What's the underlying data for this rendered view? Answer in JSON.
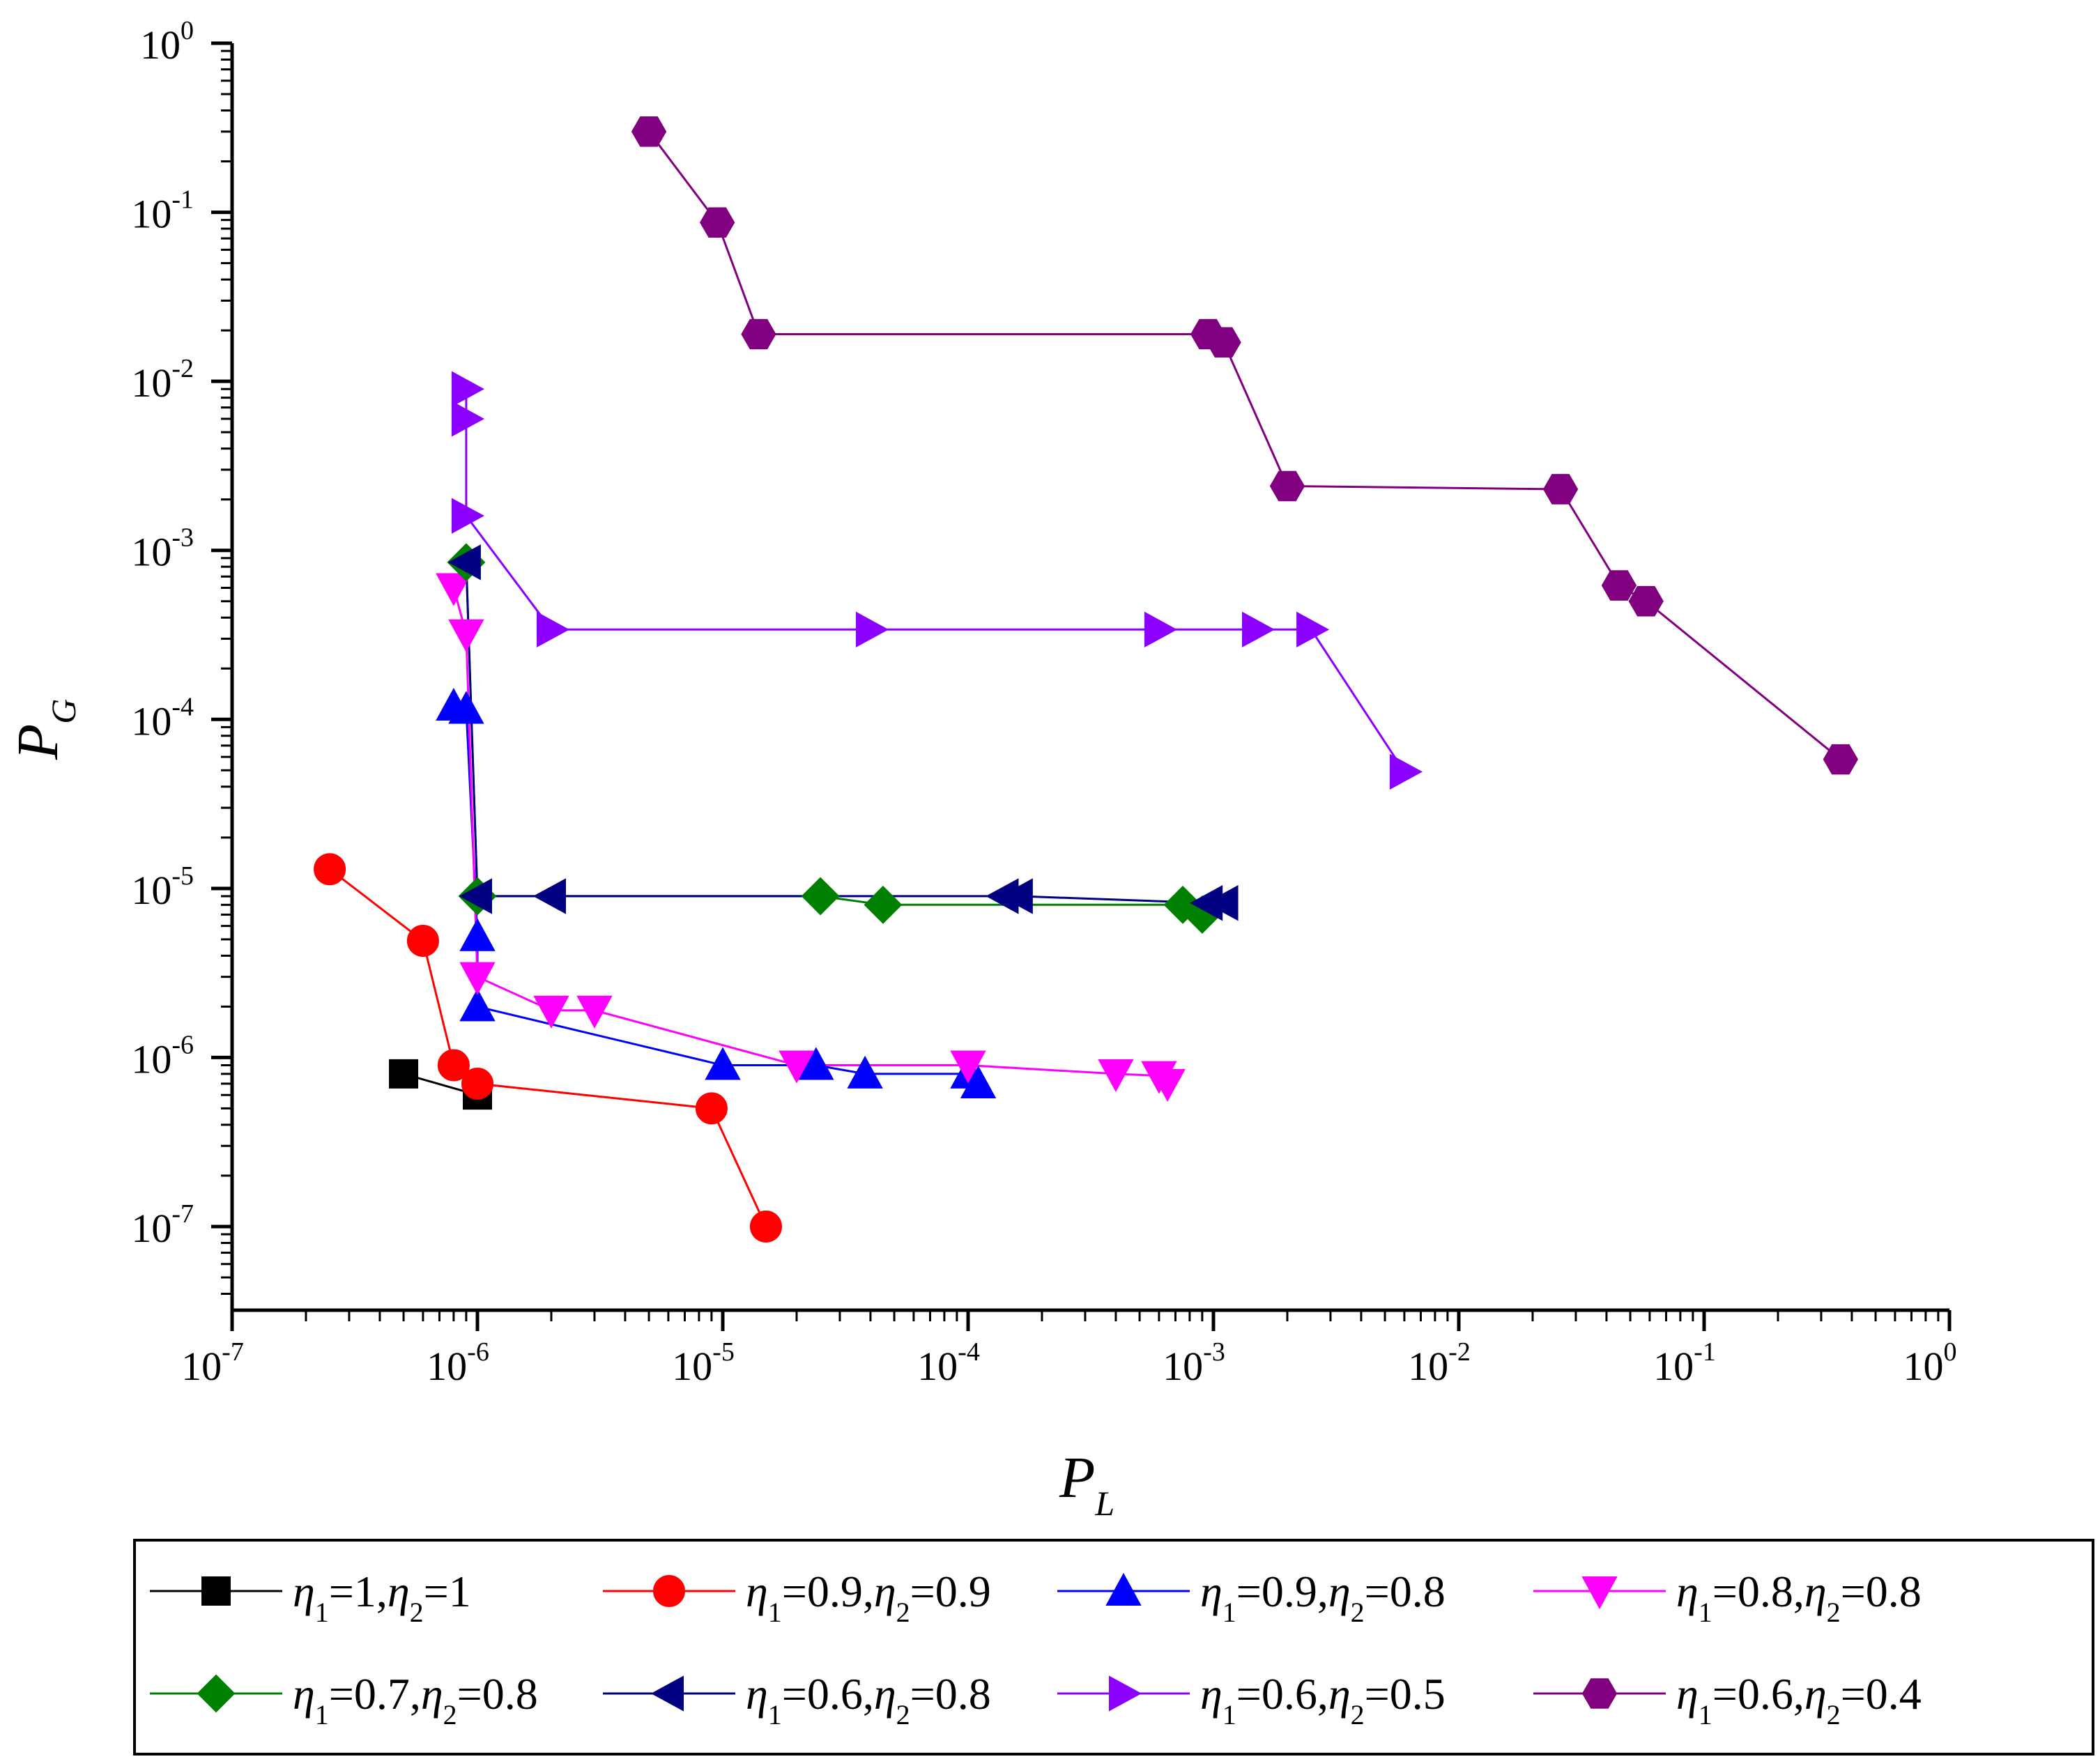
{
  "chart_data": {
    "type": "scatter",
    "title": "",
    "xlabel": {
      "main": "P",
      "sub": "L"
    },
    "ylabel": {
      "main": "P",
      "sub": "G"
    },
    "xscale": "log",
    "yscale": "log",
    "xlim": [
      1e-07,
      1
    ],
    "ylim": [
      3.2e-08,
      1
    ],
    "grid": false,
    "legend_position": "bottom",
    "x_ticks": [
      {
        "value": 1e-07,
        "base": "10",
        "exp": "-7"
      },
      {
        "value": 1e-06,
        "base": "10",
        "exp": "-6"
      },
      {
        "value": 1e-05,
        "base": "10",
        "exp": "-5"
      },
      {
        "value": 0.0001,
        "base": "10",
        "exp": "-4"
      },
      {
        "value": 0.001,
        "base": "10",
        "exp": "-3"
      },
      {
        "value": 0.01,
        "base": "10",
        "exp": "-2"
      },
      {
        "value": 0.1,
        "base": "10",
        "exp": "-1"
      },
      {
        "value": 1,
        "base": "10",
        "exp": "0"
      }
    ],
    "y_ticks": [
      {
        "value": 1e-07,
        "base": "10",
        "exp": "-7"
      },
      {
        "value": 1e-06,
        "base": "10",
        "exp": "-6"
      },
      {
        "value": 1e-05,
        "base": "10",
        "exp": "-5"
      },
      {
        "value": 0.0001,
        "base": "10",
        "exp": "-4"
      },
      {
        "value": 0.001,
        "base": "10",
        "exp": "-3"
      },
      {
        "value": 0.01,
        "base": "10",
        "exp": "-2"
      },
      {
        "value": 0.1,
        "base": "10",
        "exp": "-1"
      },
      {
        "value": 1,
        "base": "10",
        "exp": "0"
      }
    ],
    "series": [
      {
        "name": "η1=1,η2=1",
        "label": {
          "eta1": "1",
          "eta2": "1"
        },
        "color": "#000000",
        "marker": "square",
        "points": [
          [
            5e-07,
            8e-07
          ],
          [
            1e-06,
            6e-07
          ]
        ]
      },
      {
        "name": "η1=0.9,η2=0.9",
        "label": {
          "eta1": "0.9",
          "eta2": "0.9"
        },
        "color": "#ff0000",
        "marker": "circle",
        "points": [
          [
            2.5e-07,
            1.3e-05
          ],
          [
            6e-07,
            4.9e-06
          ],
          [
            8e-07,
            9e-07
          ],
          [
            1e-06,
            7e-07
          ],
          [
            9e-06,
            5e-07
          ],
          [
            1.5e-05,
            1e-07
          ]
        ]
      },
      {
        "name": "η1=0.9,η2=0.8",
        "label": {
          "eta1": "0.9",
          "eta2": "0.8"
        },
        "color": "#0000ff",
        "marker": "triangle-up",
        "points": [
          [
            8e-07,
            0.00012
          ],
          [
            9e-07,
            0.000115
          ],
          [
            1e-06,
            5.2e-06
          ],
          [
            1e-06,
            2e-06
          ],
          [
            1e-05,
            9e-07
          ],
          [
            2.4e-05,
            9e-07
          ],
          [
            3.8e-05,
            8e-07
          ],
          [
            0.0001,
            8e-07
          ],
          [
            0.00011,
            7e-07
          ]
        ]
      },
      {
        "name": "η1=0.8,η2=0.8",
        "label": {
          "eta1": "0.8",
          "eta2": "0.8"
        },
        "color": "#ff00ff",
        "marker": "triangle-down",
        "points": [
          [
            8e-07,
            0.0006
          ],
          [
            9e-07,
            0.00032
          ],
          [
            1e-06,
            3e-06
          ],
          [
            2e-06,
            1.9e-06
          ],
          [
            3e-06,
            1.9e-06
          ],
          [
            2e-05,
            9e-07
          ],
          [
            0.0001,
            9e-07
          ],
          [
            0.0004,
            8e-07
          ],
          [
            0.0006,
            7.8e-07
          ],
          [
            0.00065,
            7e-07
          ]
        ]
      },
      {
        "name": "η1=0.7,η2=0.8",
        "label": {
          "eta1": "0.7",
          "eta2": "0.8"
        },
        "color": "#008000",
        "marker": "diamond",
        "points": [
          [
            9e-07,
            0.00085
          ],
          [
            1e-06,
            9e-06
          ],
          [
            2.5e-05,
            9e-06
          ],
          [
            4.5e-05,
            8e-06
          ],
          [
            0.00075,
            8e-06
          ],
          [
            0.0009,
            7e-06
          ]
        ]
      },
      {
        "name": "η1=0.6,η2=0.8",
        "label": {
          "eta1": "0.6",
          "eta2": "0.8"
        },
        "color": "#000080",
        "marker": "triangle-left",
        "points": [
          [
            9e-07,
            0.00085
          ],
          [
            1e-06,
            9e-06
          ],
          [
            2e-06,
            9e-06
          ],
          [
            0.00014,
            9e-06
          ],
          [
            0.00016,
            9e-06
          ],
          [
            0.00095,
            8.2e-06
          ],
          [
            0.0011,
            8.2e-06
          ]
        ]
      },
      {
        "name": "η1=0.6,η2=0.5",
        "label": {
          "eta1": "0.6",
          "eta2": "0.5"
        },
        "color": "#8b00ff",
        "marker": "triangle-right",
        "points": [
          [
            9e-07,
            0.009
          ],
          [
            9e-07,
            0.006
          ],
          [
            9e-07,
            0.0016
          ],
          [
            2e-06,
            0.00034
          ],
          [
            4e-05,
            0.00034
          ],
          [
            0.0006,
            0.00034
          ],
          [
            0.0015,
            0.00034
          ],
          [
            0.0025,
            0.00034
          ],
          [
            0.006,
            4.9e-05
          ]
        ]
      },
      {
        "name": "η1=0.6,η2=0.4",
        "label": {
          "eta1": "0.6",
          "eta2": "0.4"
        },
        "color": "#800080",
        "marker": "hexagon",
        "points": [
          [
            5e-06,
            0.3
          ],
          [
            9.5e-06,
            0.087
          ],
          [
            1.4e-05,
            0.019
          ],
          [
            0.00095,
            0.019
          ],
          [
            0.0011,
            0.017
          ],
          [
            0.002,
            0.0024
          ],
          [
            0.026,
            0.0023
          ],
          [
            0.045,
            0.00062
          ],
          [
            0.058,
            0.0005
          ],
          [
            0.36,
            5.8e-05
          ]
        ]
      }
    ]
  }
}
